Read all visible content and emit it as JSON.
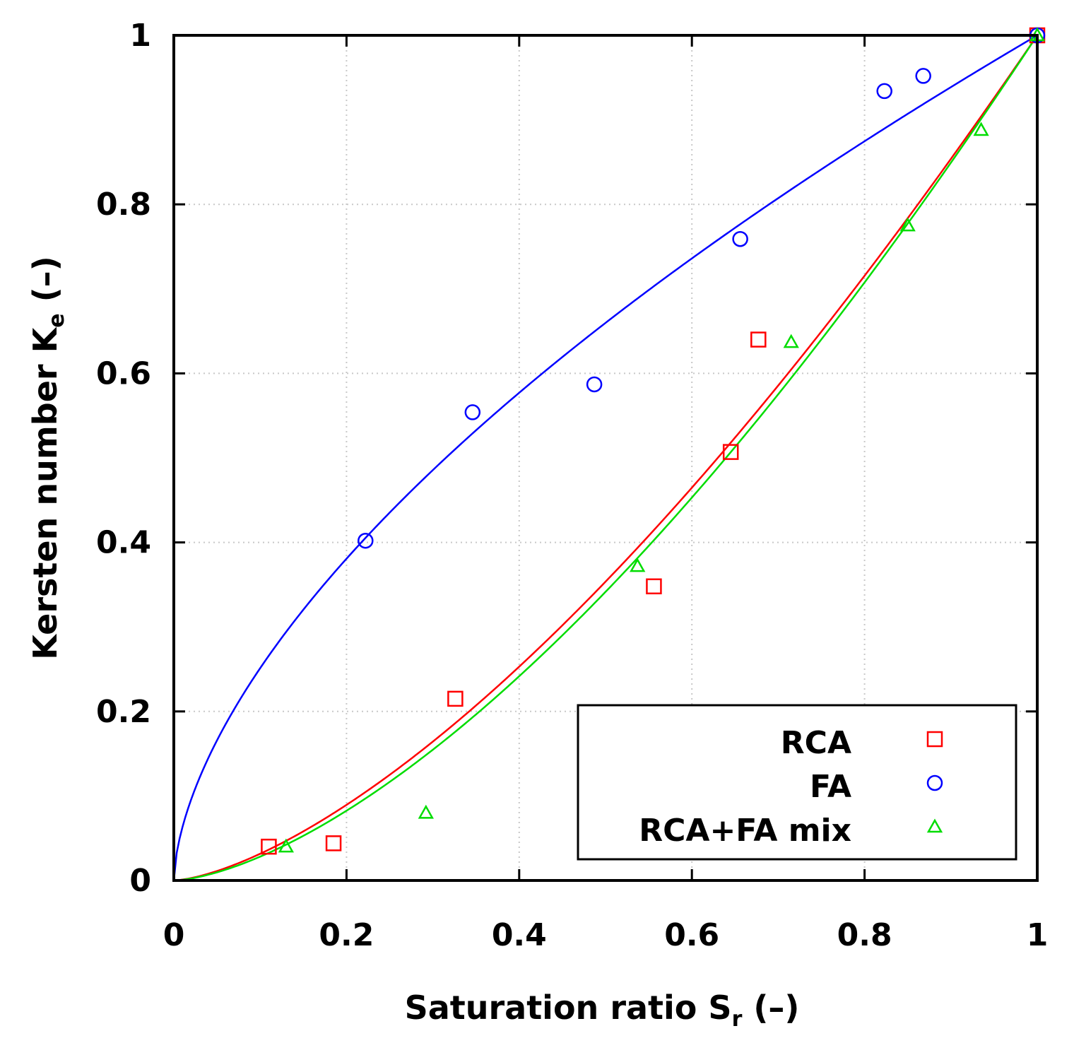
{
  "chart_data": {
    "type": "scatter",
    "xlabel": {
      "main": "Saturation ratio S",
      "sub": "r",
      "unit": " (–)"
    },
    "ylabel": {
      "main": "Kersten number K",
      "sub": "e",
      "unit": " (–)"
    },
    "xlim": [
      0,
      1
    ],
    "ylim": [
      0,
      1
    ],
    "xticks": [
      0,
      0.2,
      0.4,
      0.6,
      0.8,
      1
    ],
    "yticks": [
      0,
      0.2,
      0.4,
      0.6,
      0.8,
      1
    ],
    "xtick_labels": [
      "0",
      "0.2",
      "0.4",
      "0.6",
      "0.8",
      "1"
    ],
    "ytick_labels": [
      "0",
      "0.2",
      "0.4",
      "0.6",
      "0.8",
      "1"
    ],
    "grid": true,
    "legend_position": "bottom-right",
    "series": [
      {
        "name": "RCA",
        "marker": "square",
        "color": "#ff0000",
        "x": [
          0.11,
          0.185,
          0.326,
          0.556,
          0.645,
          0.677,
          1.0
        ],
        "y": [
          0.04,
          0.044,
          0.215,
          0.348,
          0.507,
          0.64,
          1.0
        ],
        "fit_exponent": 1.5
      },
      {
        "name": "FA",
        "marker": "circle",
        "color": "#0000ff",
        "x": [
          0.222,
          0.346,
          0.487,
          0.656,
          0.823,
          0.868,
          1.0
        ],
        "y": [
          0.402,
          0.554,
          0.587,
          0.759,
          0.934,
          0.952,
          1.0
        ],
        "fit_exponent": 0.6
      },
      {
        "name": "RCA+FA mix",
        "marker": "triangle",
        "color": "#00dd00",
        "x": [
          0.13,
          0.292,
          0.537,
          0.715,
          0.85,
          0.935,
          1.0
        ],
        "y": [
          0.04,
          0.08,
          0.372,
          0.637,
          0.775,
          0.888,
          1.0
        ],
        "fit_exponent": 1.55
      }
    ]
  }
}
